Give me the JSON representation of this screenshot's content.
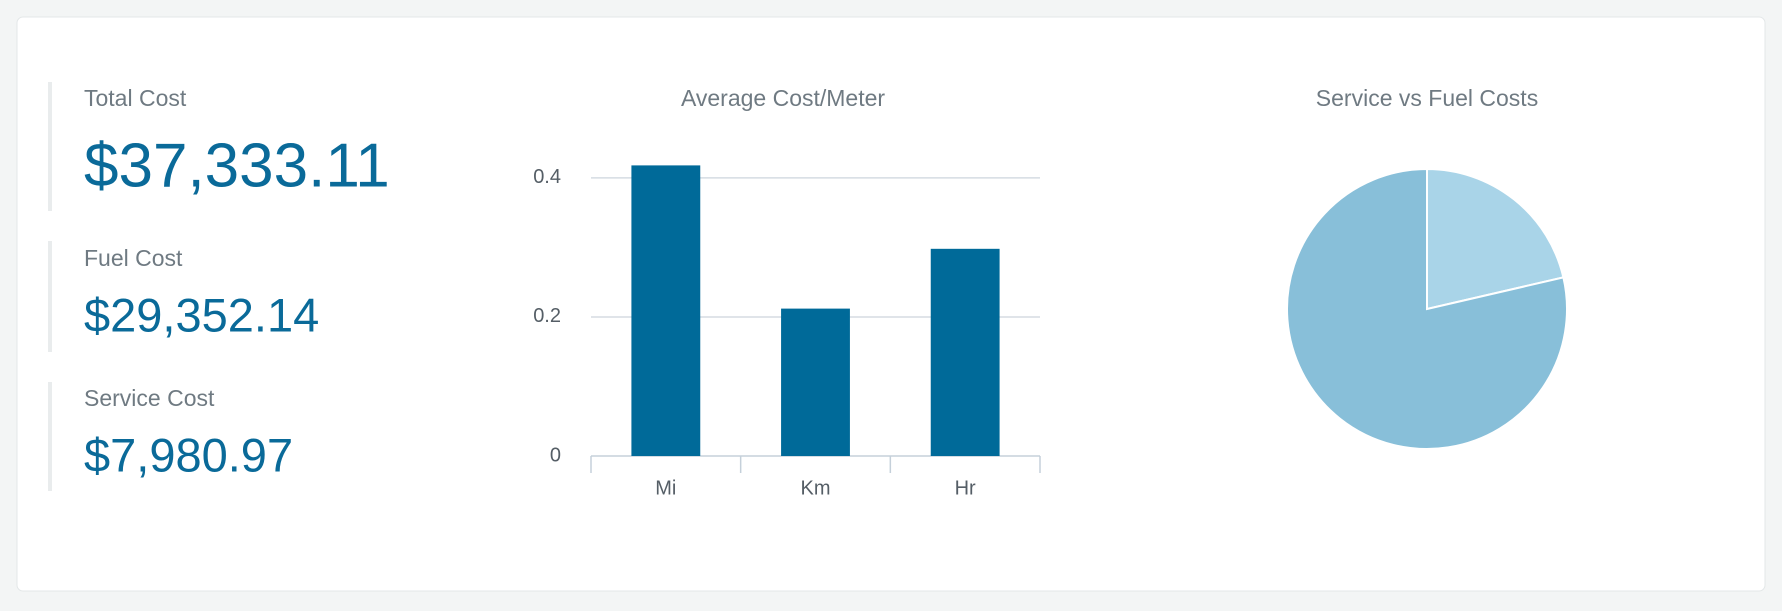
{
  "kpis": [
    {
      "label": "Total Cost",
      "value": "$37,333.11"
    },
    {
      "label": "Fuel Cost",
      "value": "$29,352.14"
    },
    {
      "label": "Service Cost",
      "value": "$7,980.97"
    }
  ],
  "chart_data": [
    {
      "type": "bar",
      "title": "Average Cost/Meter",
      "categories": [
        "Mi",
        "Km",
        "Hr"
      ],
      "values": [
        0.418,
        0.212,
        0.298
      ],
      "color": "#006a99",
      "ylim": [
        0,
        0.42
      ],
      "yticks": [
        0,
        0.2,
        0.4
      ],
      "grid": true
    },
    {
      "type": "pie",
      "title": "Service vs Fuel Costs",
      "values": [
        7980.97,
        29352.14
      ],
      "colors": [
        "#a9d4e8",
        "#88bfd9"
      ]
    }
  ]
}
